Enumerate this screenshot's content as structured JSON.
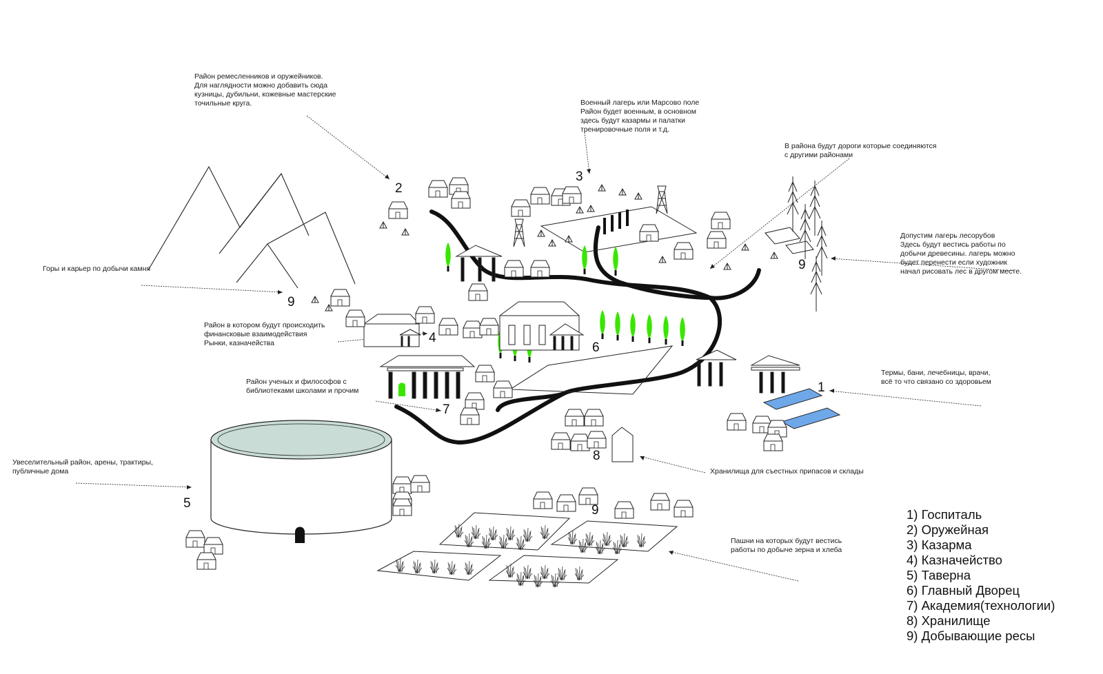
{
  "notes": {
    "craftsmen": "Район ремесленников и оружейников.\nДля наглядности можно добавить сюда\nкузницы, дубильни, кожевные мастерские\nточильные круга.",
    "military": "Военный лагерь или Марсово поле\nРайон будет военным, в основном\nздесь будут казармы и палатки\nтренировочные поля и т.д.",
    "roads": "В района будут дороги которые соединяются\nс другими районами",
    "lumber": "Допустим лагерь лесорубов\nЗдесь будут вестись работы по\nдобычи древесины. лагерь можно\nбудет перенести если художник\nначал рисовать лес в другом месте.",
    "mountains": "Горы и карьер по добычи камня",
    "finance": "Район в котором будут происходить\nфинансковые взаимодействия\nРынки, казначейства",
    "baths": "Термы, бани, лечебницы, врачи,\nвсё то что связано со здоровьем",
    "scholars": "Район ученых и философов с\nбиблиотеками школами и прочим",
    "entertainment": "Увеселительный район, арены, трактиры,\nпубличные дома",
    "storage": "Хранилища для съестных припасов и склады",
    "fields": "Пашни на которых будут вестись\nработы по добыче зерна и хлеба"
  },
  "markers": {
    "m2": "2",
    "m3": "3",
    "m9_mountain": "9",
    "m9_lumber": "9",
    "m4": "4",
    "m6": "6",
    "m1": "1",
    "m7": "7",
    "m5": "5",
    "m8": "8",
    "m9_fields": "9"
  },
  "legend": [
    "1) Госпиталь",
    "2) Оружейная",
    "3) Казарма",
    "4) Казначейство",
    "5) Таверна",
    "6) Главный Дворец",
    "7) Академия(технологии)",
    "8) Хранилище",
    "9) Добывающие ресы"
  ],
  "colors": {
    "ink": "#111111",
    "tree_green": "#39e600",
    "pool_blue": "#6fa8e8",
    "arena_floor": "#c9dcd6"
  }
}
